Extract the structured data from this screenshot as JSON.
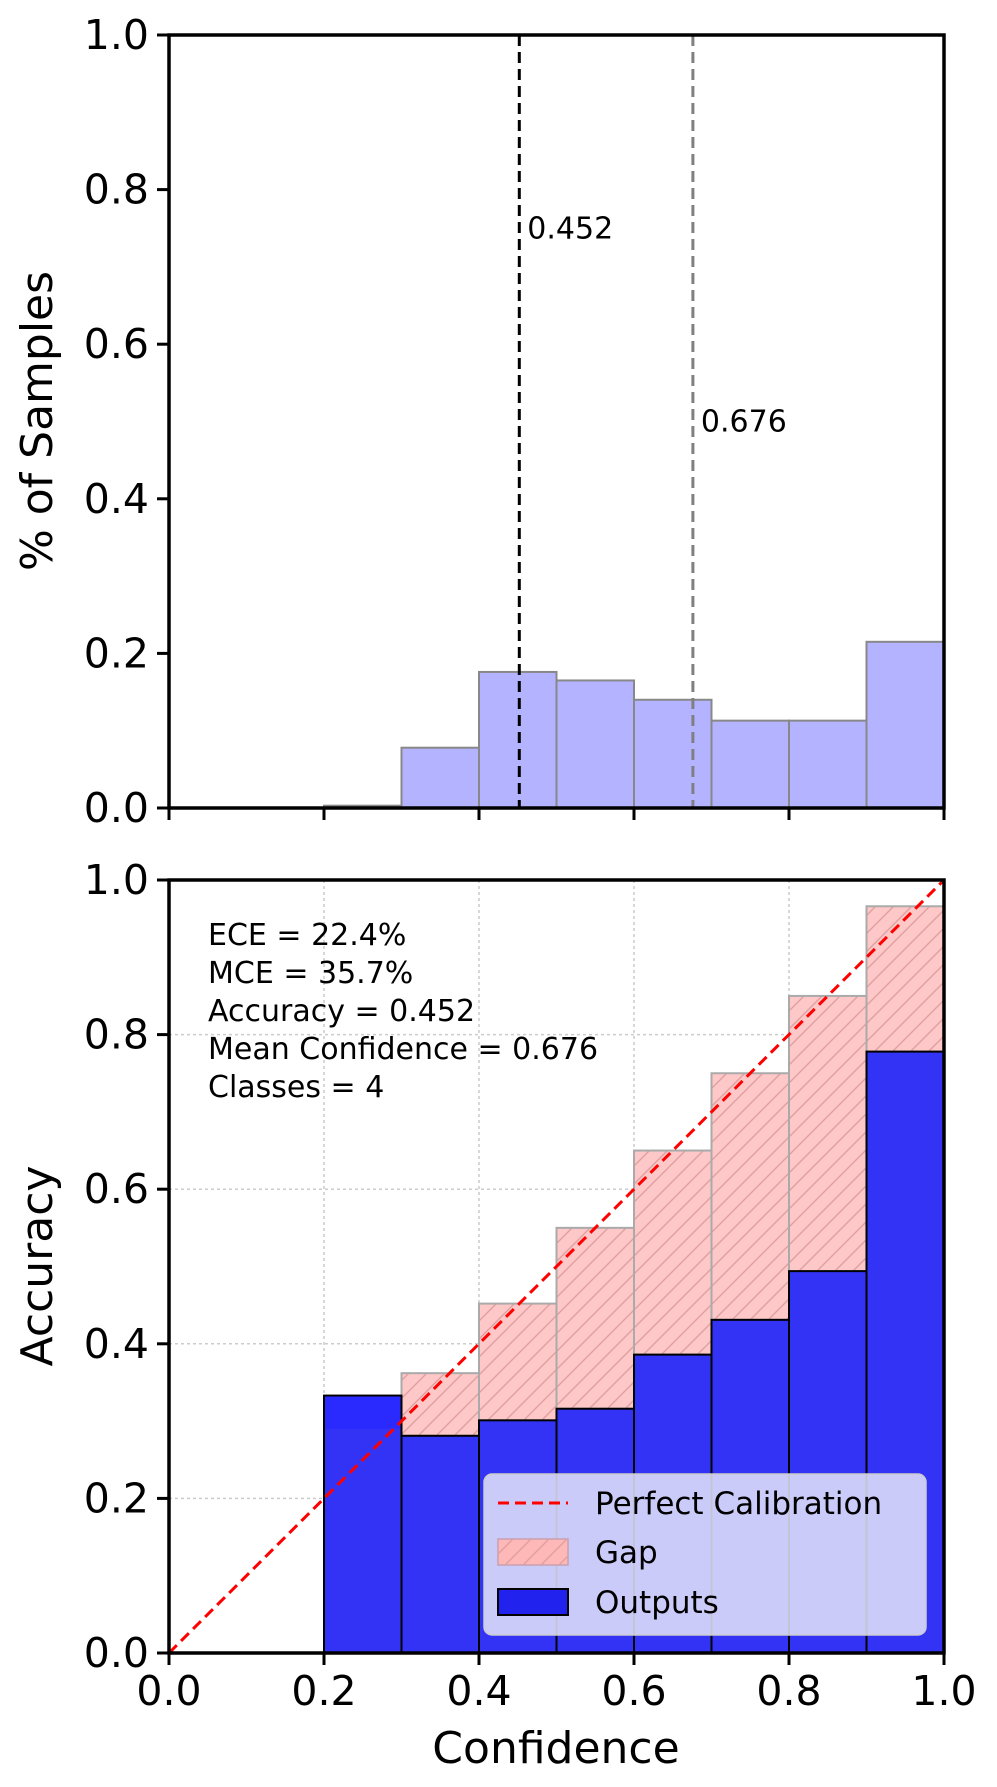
{
  "chart_data": [
    {
      "type": "bar",
      "panel": "top",
      "title": "",
      "xlabel": "",
      "ylabel": "% of Samples",
      "xlim": [
        0,
        1
      ],
      "ylim": [
        0,
        1
      ],
      "yticks": [
        "0.0",
        "0.2",
        "0.4",
        "0.6",
        "0.8",
        "1.0"
      ],
      "bin_edges": [
        0.0,
        0.1,
        0.2,
        0.3,
        0.4,
        0.5,
        0.6,
        0.7,
        0.8,
        0.9,
        1.0
      ],
      "values": [
        0,
        0,
        0.003,
        0.078,
        0.176,
        0.165,
        0.14,
        0.113,
        0.113,
        0.215
      ],
      "bar_color": "#b3b3ff",
      "vlines": [
        {
          "x": 0.452,
          "label": "0.452",
          "color": "#000000",
          "label_y": 0.75
        },
        {
          "x": 0.676,
          "label": "0.676",
          "color": "#808080",
          "label_y": 0.5
        }
      ]
    },
    {
      "type": "bar",
      "panel": "bottom",
      "title": "",
      "xlabel": "Confidence",
      "ylabel": "Accuracy",
      "xlim": [
        0,
        1
      ],
      "ylim": [
        0,
        1
      ],
      "xticks": [
        "0.0",
        "0.2",
        "0.4",
        "0.6",
        "0.8",
        "1.0"
      ],
      "yticks": [
        "0.0",
        "0.2",
        "0.4",
        "0.6",
        "0.8",
        "1.0"
      ],
      "grid": true,
      "bin_edges": [
        0.0,
        0.1,
        0.2,
        0.3,
        0.4,
        0.5,
        0.6,
        0.7,
        0.8,
        0.9,
        1.0
      ],
      "series": [
        {
          "name": "Outputs",
          "color": "#0000ff",
          "values": [
            0,
            0,
            0.333,
            0.281,
            0.301,
            0.316,
            0.386,
            0.431,
            0.494,
            0.778
          ]
        },
        {
          "name": "Gap",
          "color": "#ff9999",
          "values": [
            0,
            0,
            0.29,
            0.362,
            0.452,
            0.55,
            0.65,
            0.75,
            0.85,
            0.966
          ]
        }
      ],
      "diagonal": {
        "name": "Perfect Calibration",
        "color": "#ff0000"
      },
      "stats": [
        "ECE = 22.4%",
        "MCE = 35.7%",
        "Accuracy = 0.452",
        "Mean Confidence = 0.676",
        "Classes = 4"
      ],
      "legend": {
        "position": "lower-right",
        "entries": [
          "Perfect Calibration",
          "Gap",
          "Outputs"
        ]
      }
    }
  ]
}
